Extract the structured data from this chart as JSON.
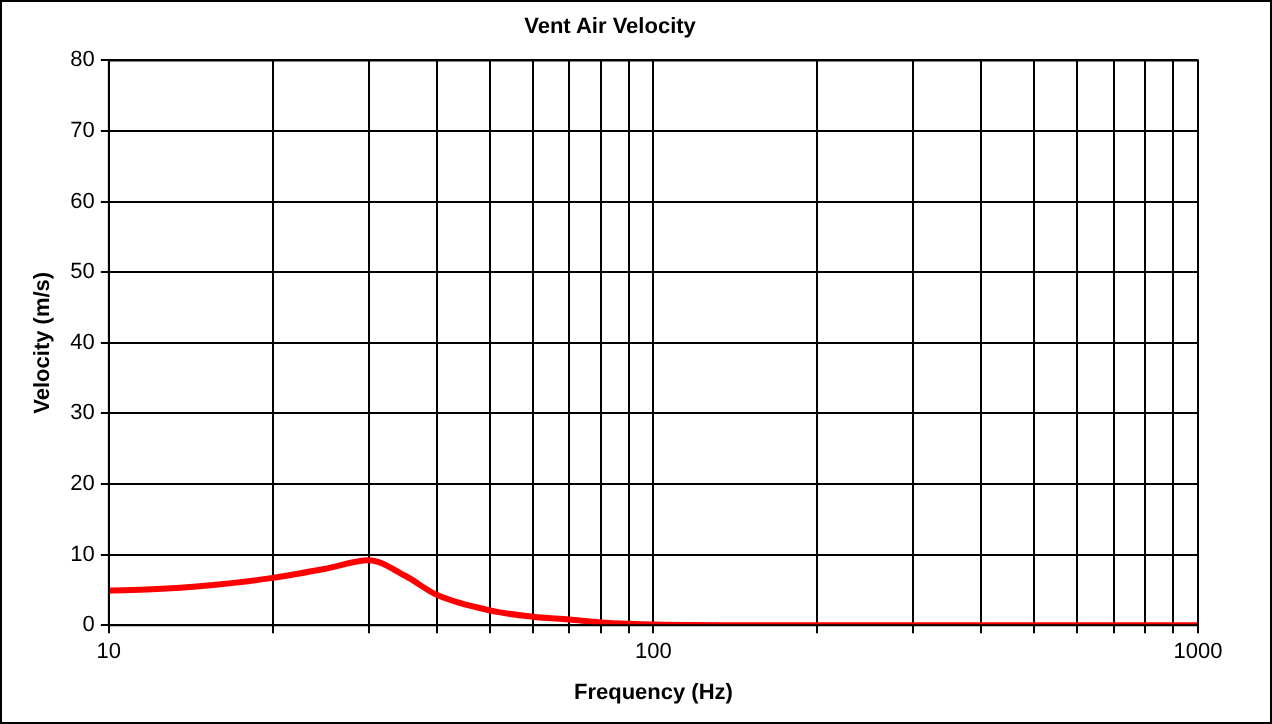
{
  "chart_data": {
    "type": "line",
    "title": "Vent Air Velocity",
    "xlabel": "Frequency (Hz)",
    "ylabel": "Velocity (m/s)",
    "log": "x",
    "x": [
      10,
      12,
      15,
      20,
      25,
      30,
      35,
      40,
      50,
      60,
      70,
      80,
      90,
      100,
      150,
      200,
      500,
      1000
    ],
    "series": [
      {
        "color": "#ff0000",
        "values": [
          4.9,
          5.1,
          5.6,
          6.7,
          8.0,
          9.2,
          7.0,
          4.3,
          2.1,
          1.2,
          0.8,
          0.4,
          0.2,
          0.1,
          0,
          0,
          0,
          0
        ]
      }
    ],
    "xlim": [
      10,
      1000
    ],
    "ylim": [
      0,
      80
    ],
    "xticks": [
      10,
      {
        "value": 20,
        "label": null
      },
      {
        "value": 30,
        "label": null
      },
      {
        "value": 40,
        "label": null
      },
      {
        "value": 50,
        "label": null
      },
      {
        "value": 60,
        "label": null
      },
      {
        "value": 70,
        "label": null
      },
      {
        "value": 80,
        "label": null
      },
      {
        "value": 90,
        "label": null
      },
      100,
      {
        "value": 200,
        "label": null
      },
      {
        "value": 300,
        "label": null
      },
      {
        "value": 400,
        "label": null
      },
      {
        "value": 500,
        "label": null
      },
      {
        "value": 600,
        "label": null
      },
      {
        "value": 700,
        "label": null
      },
      {
        "value": 800,
        "label": null
      },
      {
        "value": 900,
        "label": null
      },
      1000
    ],
    "yticks": [
      0,
      10,
      20,
      30,
      40,
      50,
      60,
      70,
      80
    ],
    "grid": true,
    "marker": "none",
    "line_style": "solid"
  }
}
